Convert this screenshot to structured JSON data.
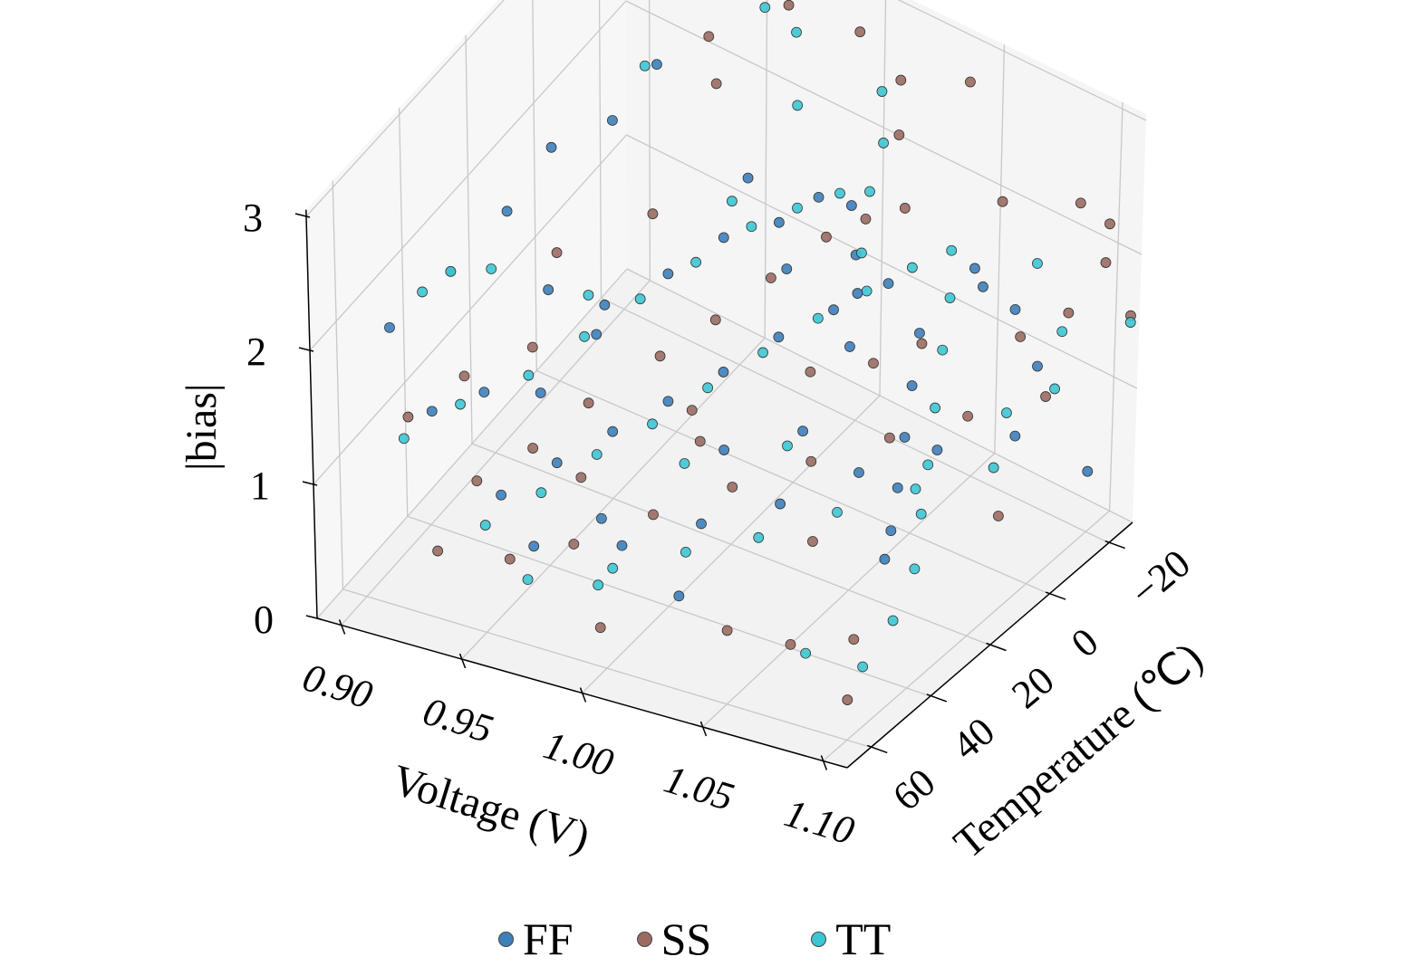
{
  "chart_data": {
    "type": "scatter3d",
    "title": "",
    "xlabel": "Voltage (V)",
    "ylabel": "Temperature (℃)",
    "zlabel": "|bias|",
    "xlim": [
      0.89,
      1.11
    ],
    "ylim": [
      -28,
      68
    ],
    "zlim": [
      0,
      3.05
    ],
    "xticks": [
      "0.90",
      "0.95",
      "1.00",
      "1.05",
      "1.10"
    ],
    "yticks": [
      "−20",
      "0",
      "20",
      "40",
      "60"
    ],
    "zticks": [
      "0",
      "1",
      "2",
      "3"
    ],
    "xtick_values": [
      0.9,
      0.95,
      1.0,
      1.05,
      1.1
    ],
    "ytick_values": [
      -20,
      0,
      20,
      40,
      60
    ],
    "ztick_values": [
      0,
      1,
      2,
      3
    ],
    "grid": true,
    "legend_position": "bottom-center",
    "series": [
      {
        "name": "FF",
        "color": "#3d80ba",
        "points": [
          [
            0.905,
            55,
            1.9
          ],
          [
            0.91,
            40,
            1.95
          ],
          [
            0.92,
            30,
            2.2
          ],
          [
            0.925,
            20,
            2.45
          ],
          [
            0.93,
            5,
            2.3
          ],
          [
            0.935,
            -5,
            2.5
          ],
          [
            0.915,
            50,
            1.2
          ],
          [
            0.93,
            45,
            1.3
          ],
          [
            0.94,
            35,
            1.1
          ],
          [
            0.95,
            25,
            1.35
          ],
          [
            0.96,
            10,
            1.5
          ],
          [
            0.97,
            0,
            1.6
          ],
          [
            0.98,
            -10,
            1.55
          ],
          [
            0.99,
            -15,
            1.7
          ],
          [
            1.0,
            -18,
            1.65
          ],
          [
            1.01,
            -12,
            1.5
          ],
          [
            1.02,
            -5,
            1.45
          ],
          [
            1.03,
            5,
            1.35
          ],
          [
            0.95,
            55,
            0.9
          ],
          [
            0.96,
            45,
            0.95
          ],
          [
            0.97,
            35,
            1.0
          ],
          [
            0.98,
            25,
            1.05
          ],
          [
            0.99,
            15,
            1.1
          ],
          [
            1.0,
            5,
            1.2
          ],
          [
            1.01,
            -5,
            1.25
          ],
          [
            1.02,
            -15,
            1.3
          ],
          [
            1.04,
            -10,
            1.2
          ],
          [
            1.05,
            0,
            1.1
          ],
          [
            1.06,
            10,
            1.0
          ],
          [
            1.07,
            20,
            0.9
          ],
          [
            1.08,
            30,
            0.85
          ],
          [
            1.09,
            40,
            0.9
          ],
          [
            1.0,
            55,
            0.8
          ],
          [
            1.02,
            45,
            0.85
          ],
          [
            1.04,
            35,
            0.9
          ],
          [
            1.06,
            25,
            1.05
          ],
          [
            1.08,
            15,
            1.15
          ],
          [
            1.1,
            5,
            1.2
          ],
          [
            1.09,
            -10,
            1.35
          ],
          [
            1.07,
            -18,
            1.45
          ],
          [
            1.05,
            -20,
            1.55
          ],
          [
            0.97,
            60,
            0.75
          ],
          [
            1.03,
            60,
            0.7
          ],
          [
            0.985,
            50,
            0.8
          ],
          [
            1.1,
            -20,
            0.45
          ],
          [
            1.06,
            -15,
            1.6
          ],
          [
            0.94,
            15,
            1.25
          ],
          [
            1.01,
            30,
            1.0
          ],
          [
            1.03,
            20,
            1.05
          ],
          [
            0.99,
            -5,
            1.4
          ],
          [
            0.93,
            25,
            1.55
          ],
          [
            0.96,
            -15,
            1.6
          ]
        ]
      },
      {
        "name": "SS",
        "color": "#9b6b62",
        "points": [
          [
            0.97,
            -20,
            2.85
          ],
          [
            0.95,
            -10,
            2.7
          ],
          [
            1.0,
            -20,
            2.9
          ],
          [
            1.02,
            -18,
            2.75
          ],
          [
            0.96,
            -5,
            2.55
          ],
          [
            1.03,
            -10,
            2.6
          ],
          [
            1.08,
            -5,
            2.6
          ],
          [
            1.1,
            -15,
            2.55
          ],
          [
            1.1,
            -25,
            2.2
          ],
          [
            1.105,
            -20,
            2.05
          ],
          [
            1.04,
            -25,
            2.75
          ],
          [
            0.905,
            50,
            1.1
          ],
          [
            0.915,
            40,
            1.2
          ],
          [
            0.93,
            30,
            1.25
          ],
          [
            0.94,
            55,
            0.95
          ],
          [
            0.95,
            45,
            1.0
          ],
          [
            0.96,
            35,
            1.15
          ],
          [
            0.97,
            20,
            1.2
          ],
          [
            0.98,
            10,
            1.3
          ],
          [
            0.99,
            0,
            1.45
          ],
          [
            1.0,
            -10,
            1.6
          ],
          [
            1.01,
            -15,
            1.7
          ],
          [
            1.02,
            -20,
            1.75
          ],
          [
            0.96,
            60,
            0.6
          ],
          [
            0.98,
            55,
            0.7
          ],
          [
            1.0,
            45,
            0.8
          ],
          [
            1.02,
            35,
            0.9
          ],
          [
            1.04,
            25,
            1.0
          ],
          [
            1.06,
            15,
            1.1
          ],
          [
            1.08,
            5,
            1.2
          ],
          [
            1.1,
            -5,
            1.3
          ],
          [
            1.09,
            -20,
            1.55
          ],
          [
            1.11,
            -25,
            1.6
          ],
          [
            1.05,
            60,
            0.55
          ],
          [
            1.07,
            55,
            0.45
          ],
          [
            1.09,
            50,
            0.5
          ],
          [
            1.1,
            60,
            0.3
          ],
          [
            1.0,
            62,
            0.35
          ],
          [
            0.93,
            60,
            0.5
          ],
          [
            1.06,
            40,
            0.85
          ],
          [
            1.04,
            5,
            1.3
          ],
          [
            0.99,
            25,
            1.05
          ],
          [
            1.02,
            10,
            1.2
          ],
          [
            0.92,
            15,
            1.5
          ],
          [
            0.94,
            0,
            1.55
          ],
          [
            1.08,
            -12,
            1.45
          ],
          [
            1.05,
            -3,
            1.35
          ],
          [
            1.1,
            10,
            0.7
          ],
          [
            1.0,
            30,
            1.0
          ],
          [
            0.97,
            45,
            0.9
          ]
        ]
      },
      {
        "name": "TT",
        "color": "#3cc6d4",
        "points": [
          [
            0.96,
            -20,
            2.75
          ],
          [
            0.98,
            -15,
            2.85
          ],
          [
            1.02,
            -12,
            2.8
          ],
          [
            0.99,
            -8,
            2.55
          ],
          [
            1.03,
            -5,
            2.65
          ],
          [
            0.93,
            -5,
            2.45
          ],
          [
            0.905,
            45,
            1.9
          ],
          [
            0.91,
            40,
            1.95
          ],
          [
            0.92,
            35,
            1.9
          ],
          [
            0.91,
            55,
            1.1
          ],
          [
            0.92,
            45,
            1.15
          ],
          [
            0.935,
            35,
            1.2
          ],
          [
            0.945,
            25,
            1.3
          ],
          [
            0.955,
            15,
            1.4
          ],
          [
            0.965,
            5,
            1.5
          ],
          [
            0.975,
            -5,
            1.6
          ],
          [
            0.985,
            -12,
            1.65
          ],
          [
            0.995,
            -18,
            1.7
          ],
          [
            1.005,
            -20,
            1.75
          ],
          [
            1.015,
            -10,
            1.6
          ],
          [
            0.95,
            60,
            0.8
          ],
          [
            0.96,
            50,
            0.85
          ],
          [
            0.97,
            40,
            0.95
          ],
          [
            0.98,
            30,
            1.0
          ],
          [
            0.99,
            20,
            1.1
          ],
          [
            1.0,
            10,
            1.2
          ],
          [
            1.01,
            0,
            1.3
          ],
          [
            1.02,
            -8,
            1.4
          ],
          [
            1.03,
            -15,
            1.5
          ],
          [
            1.04,
            -20,
            1.6
          ],
          [
            1.05,
            -12,
            1.5
          ],
          [
            1.06,
            -2,
            1.4
          ],
          [
            1.07,
            8,
            1.25
          ],
          [
            1.08,
            18,
            1.1
          ],
          [
            1.09,
            28,
            1.0
          ],
          [
            1.1,
            38,
            0.85
          ],
          [
            1.0,
            58,
            0.7
          ],
          [
            1.02,
            50,
            0.75
          ],
          [
            1.04,
            42,
            0.8
          ],
          [
            1.06,
            32,
            0.9
          ],
          [
            1.08,
            22,
            1.0
          ],
          [
            1.1,
            12,
            1.1
          ],
          [
            1.1,
            -8,
            1.3
          ],
          [
            1.09,
            -18,
            1.45
          ],
          [
            1.11,
            -25,
            1.55
          ],
          [
            1.07,
            -25,
            1.65
          ],
          [
            0.97,
            62,
            0.55
          ],
          [
            0.99,
            55,
            0.45
          ],
          [
            1.08,
            58,
            0.5
          ],
          [
            1.1,
            55,
            0.45
          ],
          [
            1.1,
            45,
            0.6
          ],
          [
            1.09,
            0,
            1.2
          ],
          [
            0.94,
            20,
            1.45
          ],
          [
            1.03,
            25,
            1.05
          ],
          [
            0.96,
            -10,
            1.55
          ],
          [
            1.0,
            35,
            0.95
          ]
        ]
      }
    ]
  }
}
